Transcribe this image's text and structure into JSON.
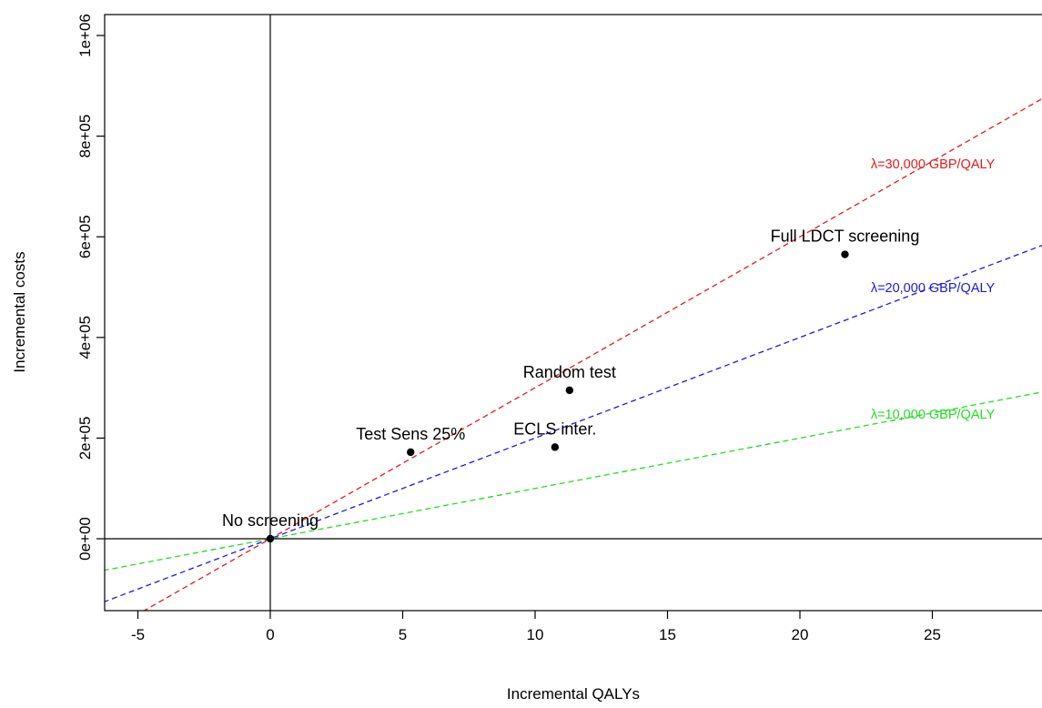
{
  "chart_data": {
    "type": "scatter",
    "title": "",
    "xlabel": "Incremental QALYs",
    "ylabel": "Incremental costs",
    "xlim": [
      -6.3,
      29.2
    ],
    "ylim": [
      -140000,
      1070000
    ],
    "x_ticks": [
      -5,
      0,
      5,
      10,
      15,
      20,
      25
    ],
    "x_tick_labels": [
      "-5",
      "0",
      "5",
      "10",
      "15",
      "20",
      "25"
    ],
    "y_ticks": [
      0,
      200000,
      400000,
      600000,
      800000,
      1000000
    ],
    "y_tick_labels": [
      "0e+00",
      "2e+05",
      "4e+05",
      "6e+05",
      "8e+05",
      "1e+06"
    ],
    "grid": false,
    "reference_lines": {
      "x": 0,
      "y": 0
    },
    "points": [
      {
        "label": "No screening",
        "x": 0,
        "y": 0
      },
      {
        "label": "Test Sens 25%",
        "x": 5.3,
        "y": 172000
      },
      {
        "label": "ECLS inter.",
        "x": 10.75,
        "y": 182000
      },
      {
        "label": "Random test",
        "x": 11.3,
        "y": 295000
      },
      {
        "label": "Full LDCT screening",
        "x": 21.7,
        "y": 565000
      }
    ],
    "wtp_lines": [
      {
        "label": "λ=30,000 GBP/QALY",
        "slope": 30000,
        "color": "#e41a1c"
      },
      {
        "label": "λ=20,000 GBP/QALY",
        "slope": 20000,
        "color": "#1a1ae6"
      },
      {
        "label": "λ=10,000 GBP/QALY",
        "slope": 10000,
        "color": "#22dd22"
      }
    ]
  }
}
